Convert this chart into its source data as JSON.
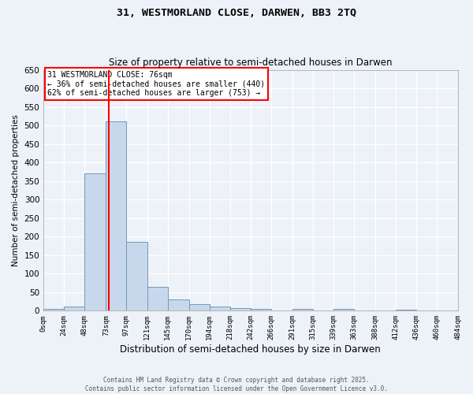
{
  "title1": "31, WESTMORLAND CLOSE, DARWEN, BB3 2TQ",
  "title2": "Size of property relative to semi-detached houses in Darwen",
  "xlabel": "Distribution of semi-detached houses by size in Darwen",
  "ylabel": "Number of semi-detached properties",
  "bin_edges": [
    0,
    24,
    48,
    73,
    97,
    121,
    145,
    170,
    194,
    218,
    242,
    266,
    291,
    315,
    339,
    363,
    388,
    412,
    436,
    460,
    484
  ],
  "bin_labels": [
    "0sqm",
    "24sqm",
    "48sqm",
    "73sqm",
    "97sqm",
    "121sqm",
    "145sqm",
    "170sqm",
    "194sqm",
    "218sqm",
    "242sqm",
    "266sqm",
    "291sqm",
    "315sqm",
    "339sqm",
    "363sqm",
    "388sqm",
    "412sqm",
    "436sqm",
    "460sqm",
    "484sqm"
  ],
  "bar_heights": [
    5,
    12,
    370,
    510,
    185,
    65,
    30,
    17,
    12,
    8,
    4,
    0,
    5,
    0,
    4,
    0,
    0,
    3,
    0,
    0
  ],
  "bar_color": "#c8d8ec",
  "bar_edge_color": "#7099bb",
  "red_line_x": 76,
  "ylim": [
    0,
    650
  ],
  "yticks": [
    0,
    50,
    100,
    150,
    200,
    250,
    300,
    350,
    400,
    450,
    500,
    550,
    600,
    650
  ],
  "annotation_title": "31 WESTMORLAND CLOSE: 76sqm",
  "annotation_line1": "← 36% of semi-detached houses are smaller (440)",
  "annotation_line2": "62% of semi-detached houses are larger (753) →",
  "footer1": "Contains HM Land Registry data © Crown copyright and database right 2025.",
  "footer2": "Contains public sector information licensed under the Open Government Licence v3.0.",
  "background_color": "#edf2f8"
}
